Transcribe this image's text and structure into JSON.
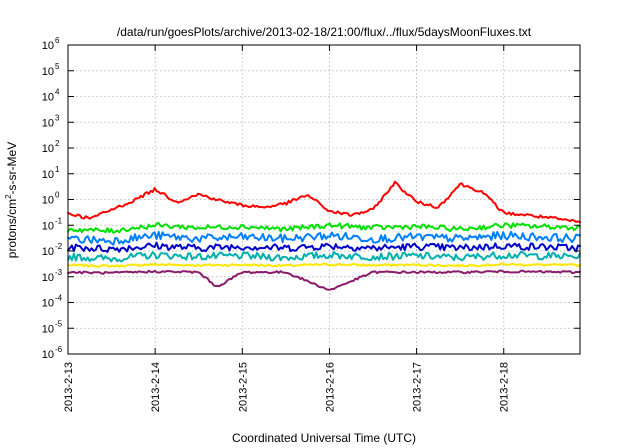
{
  "chart_data": {
    "type": "line",
    "title": "/data/run/goesPlots/archive/2013-02-18/21:00/flux/../flux/5daysMoonFluxes.txt",
    "xlabel": "Coordinated Universal Time (UTC)",
    "ylabel": {
      "before": "protons/cm",
      "sup": "2",
      "after": "-s-sr-MeV"
    },
    "x_range": [
      "2013-02-13",
      "2013-02-18 21:00"
    ],
    "x_ticks": [
      "2013-2-13",
      "2013-2-14",
      "2013-2-15",
      "2013-2-16",
      "2013-2-17",
      "2013-2-18"
    ],
    "y_scale": "log",
    "ylim": [
      1e-06,
      1000000.0
    ],
    "y_ticks": [
      {
        "base": "10",
        "exp": "-6"
      },
      {
        "base": "10",
        "exp": "-5"
      },
      {
        "base": "10",
        "exp": "-4"
      },
      {
        "base": "10",
        "exp": "-3"
      },
      {
        "base": "10",
        "exp": "-2"
      },
      {
        "base": "10",
        "exp": "-1"
      },
      {
        "base": "10",
        "exp": "0"
      },
      {
        "base": "10",
        "exp": "1"
      },
      {
        "base": "10",
        "exp": "2"
      },
      {
        "base": "10",
        "exp": "3"
      },
      {
        "base": "10",
        "exp": "4"
      },
      {
        "base": "10",
        "exp": "5"
      },
      {
        "base": "10",
        "exp": "6"
      }
    ],
    "grid": true,
    "series": [
      {
        "color": "#ff0000",
        "x": [
          "2013-02-13 00:00",
          "2013-02-13 06:00",
          "2013-02-13 12:00",
          "2013-02-13 18:00",
          "2013-02-14 00:00",
          "2013-02-14 06:00",
          "2013-02-14 12:00",
          "2013-02-14 18:00",
          "2013-02-15 00:00",
          "2013-02-15 06:00",
          "2013-02-15 12:00",
          "2013-02-15 18:00",
          "2013-02-16 00:00",
          "2013-02-16 06:00",
          "2013-02-16 12:00",
          "2013-02-16 18:00",
          "2013-02-17 00:00",
          "2013-02-17 06:00",
          "2013-02-17 12:00",
          "2013-02-17 18:00",
          "2013-02-18 00:00",
          "2013-02-18 06:00",
          "2013-02-18 12:00",
          "2013-02-18 21:00"
        ],
        "y": [
          0.3,
          0.18,
          0.4,
          0.9,
          2.5,
          0.8,
          1.6,
          0.9,
          0.6,
          0.5,
          0.7,
          1.5,
          0.35,
          0.25,
          0.4,
          4.5,
          0.8,
          0.5,
          4.0,
          2.0,
          0.3,
          0.25,
          0.2,
          0.13
        ]
      },
      {
        "color": "#00e000",
        "x": [
          "2013-02-13 00:00",
          "2013-02-13 12:00",
          "2013-02-14 00:00",
          "2013-02-14 12:00",
          "2013-02-15 00:00",
          "2013-02-15 12:00",
          "2013-02-16 00:00",
          "2013-02-16 12:00",
          "2013-02-17 00:00",
          "2013-02-17 12:00",
          "2013-02-18 00:00",
          "2013-02-18 21:00"
        ],
        "y": [
          0.07,
          0.06,
          0.1,
          0.08,
          0.09,
          0.07,
          0.1,
          0.08,
          0.09,
          0.07,
          0.1,
          0.08
        ]
      },
      {
        "color": "#0080ff",
        "x": [
          "2013-02-13 00:00",
          "2013-02-13 12:00",
          "2013-02-14 00:00",
          "2013-02-14 12:00",
          "2013-02-15 00:00",
          "2013-02-15 12:00",
          "2013-02-16 00:00",
          "2013-02-16 12:00",
          "2013-02-17 00:00",
          "2013-02-17 12:00",
          "2013-02-18 00:00",
          "2013-02-18 21:00"
        ],
        "y": [
          0.03,
          0.025,
          0.04,
          0.03,
          0.035,
          0.03,
          0.04,
          0.03,
          0.035,
          0.03,
          0.04,
          0.03
        ]
      },
      {
        "color": "#0000c8",
        "x": [
          "2013-02-13 00:00",
          "2013-02-13 12:00",
          "2013-02-14 00:00",
          "2013-02-14 12:00",
          "2013-02-15 00:00",
          "2013-02-15 12:00",
          "2013-02-16 00:00",
          "2013-02-16 12:00",
          "2013-02-17 00:00",
          "2013-02-17 12:00",
          "2013-02-18 00:00",
          "2013-02-18 21:00"
        ],
        "y": [
          0.014,
          0.012,
          0.016,
          0.013,
          0.015,
          0.013,
          0.016,
          0.013,
          0.015,
          0.013,
          0.016,
          0.013
        ]
      },
      {
        "color": "#00b0b0",
        "x": [
          "2013-02-13 00:00",
          "2013-02-13 12:00",
          "2013-02-14 00:00",
          "2013-02-14 12:00",
          "2013-02-15 00:00",
          "2013-02-15 12:00",
          "2013-02-16 00:00",
          "2013-02-16 12:00",
          "2013-02-17 00:00",
          "2013-02-17 12:00",
          "2013-02-18 00:00",
          "2013-02-18 21:00"
        ],
        "y": [
          0.006,
          0.005,
          0.007,
          0.006,
          0.0065,
          0.0055,
          0.007,
          0.006,
          0.0065,
          0.0055,
          0.007,
          0.006
        ]
      },
      {
        "color": "#ffe600",
        "x": [
          "2013-02-13 00:00",
          "2013-02-13 12:00",
          "2013-02-14 00:00",
          "2013-02-14 12:00",
          "2013-02-15 00:00",
          "2013-02-15 12:00",
          "2013-02-16 00:00",
          "2013-02-16 12:00",
          "2013-02-17 00:00",
          "2013-02-17 12:00",
          "2013-02-18 00:00",
          "2013-02-18 21:00"
        ],
        "y": [
          0.0028,
          0.0026,
          0.003,
          0.0028,
          0.0029,
          0.0027,
          0.003,
          0.0028,
          0.0029,
          0.0027,
          0.003,
          0.0028
        ]
      },
      {
        "color": "#8b1a6b",
        "x": [
          "2013-02-13 00:00",
          "2013-02-13 12:00",
          "2013-02-14 00:00",
          "2013-02-14 12:00",
          "2013-02-14 17:00",
          "2013-02-15 00:00",
          "2013-02-15 12:00",
          "2013-02-16 00:00",
          "2013-02-16 12:00",
          "2013-02-17 00:00",
          "2013-02-17 12:00",
          "2013-02-18 00:00",
          "2013-02-18 21:00"
        ],
        "y": [
          0.0015,
          0.0014,
          0.0016,
          0.0015,
          0.0004,
          0.0015,
          0.0015,
          0.0003,
          0.0015,
          0.0015,
          0.0015,
          0.0016,
          0.0015
        ]
      }
    ]
  }
}
